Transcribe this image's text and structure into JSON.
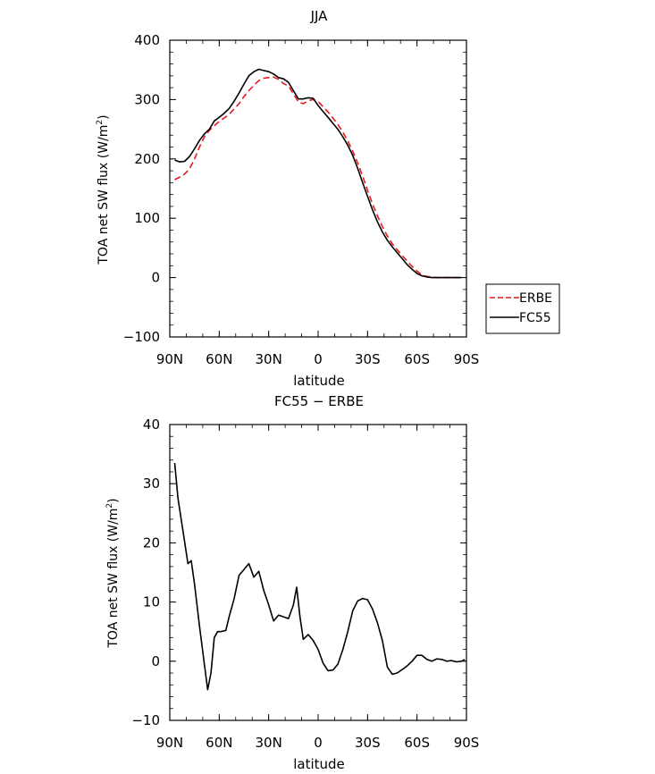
{
  "chart_data": [
    {
      "type": "line",
      "title": "JJA",
      "xlabel": "latitude",
      "ylabel": "TOA net SW flux (W/m",
      "ylabel_sup": "2",
      "ylabel_end": ")",
      "xlim": [
        90,
        -90
      ],
      "ylim": [
        -100,
        400
      ],
      "yticks": [
        400,
        300,
        200,
        100,
        0,
        -100
      ],
      "ytick_labels": [
        "400",
        "300",
        "200",
        "100",
        "0",
        "−100"
      ],
      "xticks": [
        90,
        60,
        30,
        0,
        -30,
        -60,
        -90
      ],
      "xtick_labels": [
        "90N",
        "60N",
        "30N",
        "0",
        "30S",
        "60S",
        "90S"
      ],
      "legend": {
        "placement": "right",
        "entries": [
          "ERBE",
          "FC55"
        ]
      },
      "series": [
        {
          "name": "ERBE",
          "color": "#e8161b",
          "dash": "dashed",
          "x": [
            87,
            82,
            78,
            75,
            72,
            69,
            66,
            63,
            60,
            57,
            54,
            51,
            48,
            45,
            42,
            39,
            36,
            33,
            30,
            27,
            24,
            21,
            18,
            15,
            12,
            9,
            6,
            3,
            0,
            -3,
            -6,
            -9,
            -12,
            -15,
            -18,
            -21,
            -24,
            -27,
            -30,
            -33,
            -36,
            -39,
            -42,
            -45,
            -48,
            -51,
            -54,
            -57,
            -60,
            -63,
            -66,
            -69,
            -72,
            -75,
            -78,
            -81,
            -84,
            -87
          ],
          "y": [
            165,
            172,
            183,
            200,
            220,
            237,
            248,
            256,
            263,
            269,
            275,
            284,
            293,
            305,
            315,
            324,
            332,
            336,
            337,
            338,
            334,
            327,
            323,
            310,
            296,
            293,
            298,
            300,
            297,
            288,
            279,
            269,
            258,
            245,
            230,
            213,
            193,
            171,
            147,
            124,
            104,
            86,
            70,
            57,
            47,
            37,
            28,
            19,
            11,
            4,
            2,
            1,
            0,
            0,
            0,
            0,
            0,
            0
          ]
        },
        {
          "name": "FC55",
          "color": "#000000",
          "dash": "solid",
          "x": [
            87,
            84,
            81,
            78,
            75,
            72,
            69,
            66,
            63,
            60,
            57,
            54,
            51,
            48,
            45,
            42,
            39,
            36,
            33,
            30,
            27,
            24,
            21,
            18,
            15,
            12,
            9,
            6,
            3,
            0,
            -3,
            -6,
            -9,
            -12,
            -15,
            -18,
            -21,
            -24,
            -27,
            -30,
            -33,
            -36,
            -39,
            -42,
            -45,
            -48,
            -51,
            -54,
            -57,
            -60,
            -63,
            -66,
            -69,
            -72,
            -75,
            -78,
            -81,
            -84,
            -87
          ],
          "y": [
            198,
            195,
            196,
            204,
            217,
            231,
            242,
            250,
            264,
            270,
            277,
            285,
            297,
            311,
            326,
            340,
            347,
            351,
            349,
            347,
            343,
            337,
            335,
            329,
            315,
            301,
            301,
            303,
            302,
            290,
            280,
            270,
            260,
            250,
            237,
            223,
            206,
            184,
            160,
            137,
            114,
            94,
            77,
            63,
            52,
            42,
            32,
            22,
            14,
            7,
            3,
            1,
            0,
            0,
            0,
            0,
            0,
            0,
            0
          ]
        }
      ]
    },
    {
      "type": "line",
      "title": "FC55 − ERBE",
      "xlabel": "latitude",
      "ylabel": "TOA net SW flux (W/m",
      "ylabel_sup": "2",
      "ylabel_end": ")",
      "xlim": [
        90,
        -90
      ],
      "ylim": [
        -10,
        40
      ],
      "yticks": [
        40,
        30,
        20,
        10,
        0,
        -10
      ],
      "ytick_labels": [
        "40",
        "30",
        "20",
        "10",
        "0",
        "−10"
      ],
      "xticks": [
        90,
        60,
        30,
        0,
        -30,
        -60,
        -90
      ],
      "xtick_labels": [
        "90N",
        "60N",
        "30N",
        "0",
        "30S",
        "60S",
        "90S"
      ],
      "series": [
        {
          "color": "#000000",
          "dash": "solid",
          "x": [
            87,
            85,
            82,
            79,
            77,
            75,
            72,
            69,
            67,
            65,
            63,
            61,
            59,
            56,
            54,
            51,
            48,
            45,
            42,
            39,
            36,
            33,
            30,
            27,
            24,
            21,
            18,
            15,
            13,
            11,
            9,
            6,
            3,
            0,
            -3,
            -6,
            -9,
            -12,
            -15,
            -18,
            -21,
            -24,
            -27,
            -30,
            -33,
            -36,
            -39,
            -42,
            -45,
            -48,
            -51,
            -54,
            -57,
            -60,
            -63,
            -66,
            -69,
            -72,
            -75,
            -78,
            -81,
            -84,
            -87,
            -89
          ],
          "y": [
            33.5,
            27.5,
            22,
            16.5,
            17,
            13,
            6,
            -0.5,
            -4.8,
            -2,
            4,
            5,
            5,
            5.2,
            7.5,
            10.5,
            14.5,
            15.5,
            16.5,
            14.2,
            15.2,
            12,
            9.5,
            6.8,
            7.8,
            7.5,
            7.2,
            9.5,
            12.5,
            7.5,
            3.7,
            4.5,
            3.5,
            2,
            -0.3,
            -1.6,
            -1.5,
            -0.5,
            2,
            5,
            8.5,
            10.2,
            10.6,
            10.4,
            8.8,
            6.5,
            3.5,
            -1,
            -2.2,
            -2,
            -1.4,
            -0.8,
            0,
            1,
            1,
            0.3,
            0,
            0.4,
            0.3,
            0,
            0.1,
            -0.1,
            0,
            0.3
          ]
        }
      ]
    }
  ]
}
